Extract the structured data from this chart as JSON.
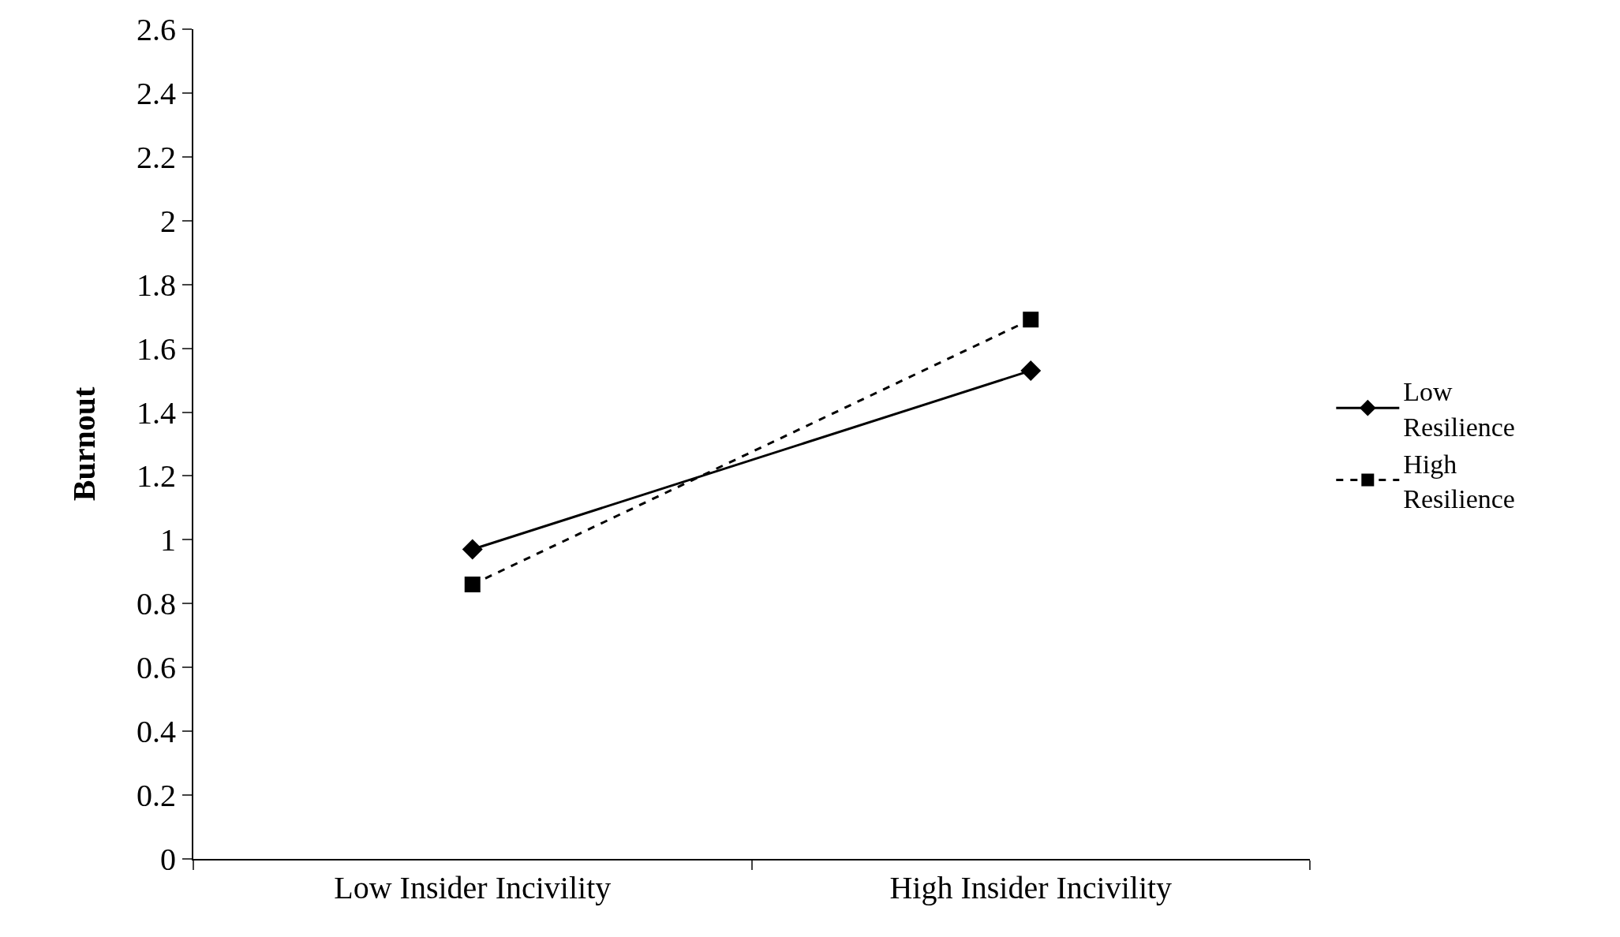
{
  "chart_data": {
    "type": "line",
    "ylabel": "Burnout",
    "categories": [
      "Low Insider Incivility",
      "High Insider Incivility"
    ],
    "series": [
      {
        "name": "Low Resilience",
        "color": "#000000",
        "values": [
          0.97,
          1.53
        ],
        "marker": "diamond",
        "line_style": "solid"
      },
      {
        "name": "High Resilience",
        "color": "#000000",
        "values": [
          0.86,
          1.69
        ],
        "marker": "square",
        "line_style": "dashed"
      }
    ],
    "ylim": [
      0,
      2.6
    ],
    "yticks": [
      0,
      0.2,
      0.4,
      0.6,
      0.8,
      1,
      1.2,
      1.4,
      1.6,
      1.8,
      2,
      2.2,
      2.4,
      2.6
    ],
    "legend": "right"
  }
}
